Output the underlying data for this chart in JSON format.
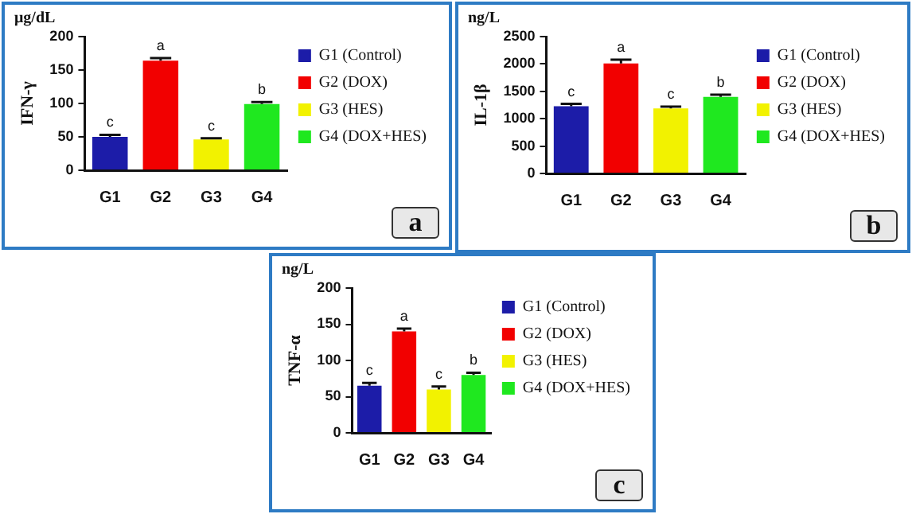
{
  "chart_data": [
    {
      "type": "bar",
      "ylabel": "IFN-γ",
      "categories": [
        "G1",
        "G2",
        "G3",
        "G4"
      ],
      "ylim": [
        0,
        200
      ],
      "yticks": [
        0,
        50,
        100,
        150,
        200
      ],
      "grid": false,
      "legend": "right",
      "series": [
        {
          "name": "G1 (Control)",
          "color": "#1c1ca8",
          "values": [
            50,
            null,
            null,
            null
          ],
          "errors": [
            3,
            null,
            null,
            null
          ]
        },
        {
          "name": "G2 (DOX)",
          "color": "#f20000",
          "values": [
            null,
            164,
            null,
            null
          ],
          "errors": [
            null,
            4,
            null,
            null
          ]
        },
        {
          "name": "G3 (HES)",
          "color": "#f2f200",
          "values": [
            null,
            null,
            46,
            null
          ],
          "errors": [
            null,
            null,
            2,
            null
          ]
        },
        {
          "name": "G4 (DOX+HES)",
          "color": "#1fe81f",
          "values": [
            null,
            null,
            null,
            99
          ],
          "errors": [
            null,
            null,
            null,
            3
          ]
        }
      ],
      "annotations": [
        "μg/dL",
        "a",
        {
          "text": "c",
          "x": "G1",
          "y": 53
        },
        {
          "text": "a",
          "x": "G2",
          "y": 168
        },
        {
          "text": "c",
          "x": "G3",
          "y": 48
        },
        {
          "text": "b",
          "x": "G4",
          "y": 102
        }
      ]
    },
    {
      "type": "bar",
      "ylabel": "IL-1β",
      "categories": [
        "G1",
        "G2",
        "G3",
        "G4"
      ],
      "ylim": [
        0,
        2500
      ],
      "yticks": [
        0,
        500,
        1000,
        1500,
        2000,
        2500
      ],
      "grid": false,
      "legend": "right",
      "series": [
        {
          "name": "G1 (Control)",
          "color": "#1c1ca8",
          "values": [
            1230,
            null,
            null,
            null
          ],
          "errors": [
            40,
            null,
            null,
            null
          ]
        },
        {
          "name": "G2 (DOX)",
          "color": "#f20000",
          "values": [
            null,
            2010,
            null,
            null
          ],
          "errors": [
            null,
            70,
            null,
            null
          ]
        },
        {
          "name": "G3 (HES)",
          "color": "#f2f200",
          "values": [
            null,
            null,
            1190,
            null
          ],
          "errors": [
            null,
            null,
            30,
            null
          ]
        },
        {
          "name": "G4 (DOX+HES)",
          "color": "#1fe81f",
          "values": [
            null,
            null,
            null,
            1400
          ],
          "errors": [
            null,
            null,
            null,
            40
          ]
        }
      ],
      "annotations": [
        "ng/L",
        "b",
        {
          "text": "c",
          "x": "G1",
          "y": 1270
        },
        {
          "text": "a",
          "x": "G2",
          "y": 2080
        },
        {
          "text": "c",
          "x": "G3",
          "y": 1220
        },
        {
          "text": "b",
          "x": "G4",
          "y": 1440
        }
      ]
    },
    {
      "type": "bar",
      "ylabel": "TNF-α",
      "categories": [
        "G1",
        "G2",
        "G3",
        "G4"
      ],
      "ylim": [
        0,
        200
      ],
      "yticks": [
        0,
        50,
        100,
        150,
        200
      ],
      "grid": false,
      "legend": "right",
      "series": [
        {
          "name": "G1 (Control)",
          "color": "#1c1ca8",
          "values": [
            65,
            null,
            null,
            null
          ],
          "errors": [
            4,
            null,
            null,
            null
          ]
        },
        {
          "name": "G2 (DOX)",
          "color": "#f20000",
          "values": [
            null,
            140,
            null,
            null
          ],
          "errors": [
            null,
            4,
            null,
            null
          ]
        },
        {
          "name": "G3 (HES)",
          "color": "#f2f200",
          "values": [
            null,
            null,
            60,
            null
          ],
          "errors": [
            null,
            null,
            4,
            null
          ]
        },
        {
          "name": "G4 (DOX+HES)",
          "color": "#1fe81f",
          "values": [
            null,
            null,
            null,
            80
          ],
          "errors": [
            null,
            null,
            null,
            3
          ]
        }
      ],
      "annotations": [
        "ng/L",
        "c",
        {
          "text": "c",
          "x": "G1",
          "y": 69
        },
        {
          "text": "a",
          "x": "G2",
          "y": 144
        },
        {
          "text": "c",
          "x": "G3",
          "y": 64
        },
        {
          "text": "b",
          "x": "G4",
          "y": 83
        }
      ]
    }
  ]
}
